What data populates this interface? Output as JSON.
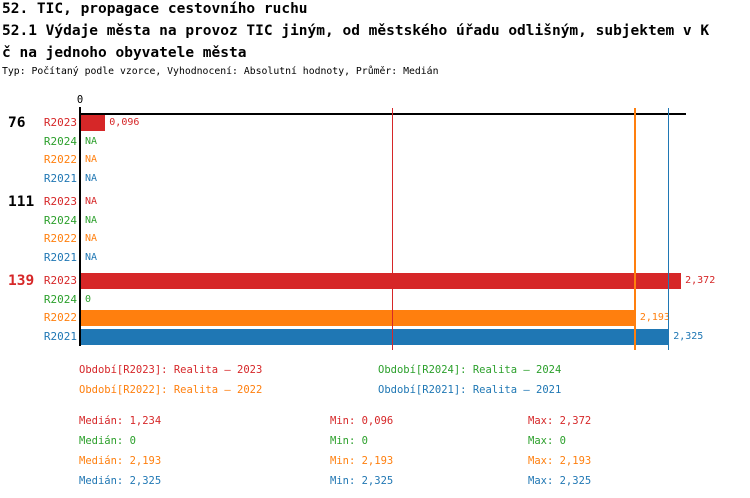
{
  "header": {
    "line1": "52. TIC, propagace cestovního ruchu",
    "line2": "52.1 Výdaje města na provoz TIC jiným, od městského úřadu odlišným, subjektem v K",
    "line3": "č na jednoho obyvatele města",
    "meta": "Typ: Počítaný podle vzorce, Vyhodnocení: Absolutní hodnoty, Průměr: Medián"
  },
  "colors": {
    "R2023": "#d62728",
    "R2024": "#2ca02c",
    "R2022": "#ff7f0e",
    "R2021": "#1f77b4",
    "axis": "#000000",
    "selected_group": "#d62728"
  },
  "chart_data": {
    "type": "bar",
    "orientation": "horizontal",
    "title": "52.1 Výdaje města na provoz TIC jiným, od městského úřadu odlišným, subjektem v Kč na jednoho obyvatele města",
    "x_axis": {
      "zero_label": "0",
      "min": 0,
      "max": 2.4,
      "grid": false
    },
    "series_order": [
      "R2023",
      "R2024",
      "R2022",
      "R2021"
    ],
    "groups": [
      {
        "id": "76",
        "selected": false,
        "bars": [
          {
            "series": "R2023",
            "value": 0.096,
            "label": "0,096"
          },
          {
            "series": "R2024",
            "value": null,
            "label": "NA"
          },
          {
            "series": "R2022",
            "value": null,
            "label": "NA"
          },
          {
            "series": "R2021",
            "value": null,
            "label": "NA"
          }
        ]
      },
      {
        "id": "111",
        "selected": false,
        "bars": [
          {
            "series": "R2023",
            "value": null,
            "label": "NA"
          },
          {
            "series": "R2024",
            "value": null,
            "label": "NA"
          },
          {
            "series": "R2022",
            "value": null,
            "label": "NA"
          },
          {
            "series": "R2021",
            "value": null,
            "label": "NA"
          }
        ]
      },
      {
        "id": "139",
        "selected": true,
        "bars": [
          {
            "series": "R2023",
            "value": 2.372,
            "label": "2,372"
          },
          {
            "series": "R2024",
            "value": 0,
            "label": "0"
          },
          {
            "series": "R2022",
            "value": 2.193,
            "label": "2,193"
          },
          {
            "series": "R2021",
            "value": 2.325,
            "label": "2,325"
          }
        ]
      }
    ],
    "median_lines": [
      {
        "series": "R2023",
        "value": 1.234
      },
      {
        "series": "R2022",
        "value": 2.193
      },
      {
        "series": "R2021",
        "value": 2.325
      }
    ]
  },
  "legend": [
    {
      "series": "R2023",
      "text": "Období[R2023]: Realita – 2023"
    },
    {
      "series": "R2024",
      "text": "Období[R2024]: Realita – 2024"
    },
    {
      "series": "R2022",
      "text": "Období[R2022]: Realita – 2022"
    },
    {
      "series": "R2021",
      "text": "Období[R2021]: Realita – 2021"
    }
  ],
  "stats": [
    {
      "series": "R2023",
      "median_label": "Medián: 1,234",
      "min_label": "Min: 0,096",
      "max_label": "Max: 2,372"
    },
    {
      "series": "R2024",
      "median_label": "Medián: 0",
      "min_label": "Min: 0",
      "max_label": "Max: 0"
    },
    {
      "series": "R2022",
      "median_label": "Medián: 2,193",
      "min_label": "Min: 2,193",
      "max_label": "Max: 2,193"
    },
    {
      "series": "R2021",
      "median_label": "Medián: 2,325",
      "min_label": "Min: 2,325",
      "max_label": "Max: 2,325"
    }
  ]
}
